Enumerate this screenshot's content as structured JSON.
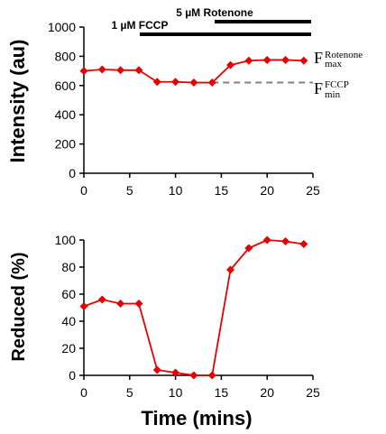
{
  "chart_data": [
    {
      "type": "line",
      "x": [
        0,
        2,
        4,
        6,
        8,
        10,
        12,
        14,
        16,
        18,
        20,
        22,
        24
      ],
      "series": [
        {
          "values": [
            700,
            710,
            705,
            705,
            625,
            625,
            620,
            620,
            740,
            770,
            775,
            775,
            770
          ],
          "color": "#e60000"
        }
      ],
      "ylabel": "Intensity (au)",
      "xlabel": "",
      "xlim": [
        0,
        25
      ],
      "ylim": [
        0,
        1000
      ],
      "xticks": [
        "0",
        "5",
        "10",
        "15",
        "20",
        "25"
      ],
      "yticks": [
        "0",
        "200",
        "400",
        "600",
        "800",
        "1000"
      ],
      "grid": false,
      "reference_line": {
        "y": 620,
        "x_from": 14,
        "x_to": 25,
        "style": "dashed",
        "color": "#808080"
      },
      "treatments": [
        {
          "label": "1 µM FCCP",
          "start": 6,
          "end": 25
        },
        {
          "label": "5 µM Rotenone",
          "start": 14,
          "end": 25
        }
      ],
      "annotations": [
        {
          "main": "F",
          "sub": "max",
          "sup": "Rotenone"
        },
        {
          "main": "F",
          "sub": "min",
          "sup": "FCCP"
        }
      ]
    },
    {
      "type": "line",
      "x": [
        0,
        2,
        4,
        6,
        8,
        10,
        12,
        14,
        16,
        18,
        20,
        22,
        24
      ],
      "series": [
        {
          "values": [
            51,
            56,
            53,
            53,
            4,
            2,
            0,
            0,
            78,
            94,
            100,
            99,
            97
          ],
          "color": "#e60000"
        }
      ],
      "ylabel": "Reduced (%)",
      "xlabel": "Time (mins)",
      "xlim": [
        0,
        25
      ],
      "ylim": [
        0,
        100
      ],
      "xticks": [
        "0",
        "5",
        "10",
        "15",
        "20",
        "25"
      ],
      "yticks": [
        "0",
        "20",
        "40",
        "60",
        "80",
        "100"
      ],
      "grid": false
    }
  ]
}
